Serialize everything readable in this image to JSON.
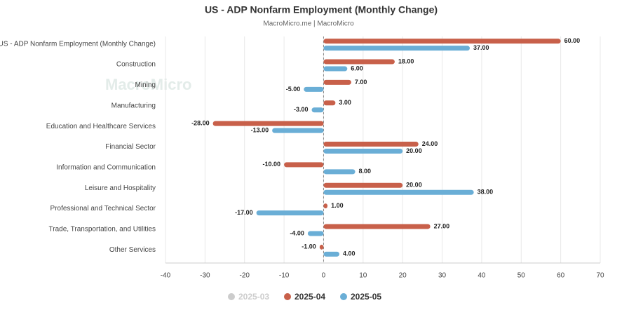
{
  "chart_data": {
    "type": "bar",
    "orientation": "horizontal",
    "title": "US - ADP Nonfarm Employment (Monthly Change)",
    "subtitle": "MacroMicro.me | MacroMicro",
    "watermark": "MacroMicro",
    "categories": [
      "US - ADP Nonfarm Employment (Monthly Change)",
      "Construction",
      "Mining",
      "Manufacturing",
      "Education and Healthcare Services",
      "Financial Sector",
      "Information and Communication",
      "Leisure and Hospitality",
      "Professional and Technical Sector",
      "Trade, Transportation, and Utilities",
      "Other Services"
    ],
    "series": [
      {
        "name": "2025-03",
        "color": "#cccccc",
        "visible": false,
        "values": [
          null,
          null,
          null,
          null,
          null,
          null,
          null,
          null,
          null,
          null,
          null
        ]
      },
      {
        "name": "2025-04",
        "color": "#c8604a",
        "visible": true,
        "values": [
          60,
          18,
          7,
          3,
          -28,
          24,
          -10,
          20,
          1,
          27,
          -1
        ],
        "value_labels": [
          "60.00",
          "18.00",
          "7.00",
          "3.00",
          "-28.00",
          "24.00",
          "-10.00",
          "20.00",
          "1.00",
          "27.00",
          "-1.00"
        ]
      },
      {
        "name": "2025-05",
        "color": "#6aaed6",
        "visible": true,
        "values": [
          37,
          6,
          -5,
          -3,
          -13,
          20,
          8,
          38,
          -17,
          -4,
          4
        ],
        "value_labels": [
          "37.00",
          "6.00",
          "-5.00",
          "-3.00",
          "-13.00",
          "20.00",
          "8.00",
          "38.00",
          "-17.00",
          "-4.00",
          "4.00"
        ]
      }
    ],
    "xlim": [
      -40,
      70
    ],
    "xticks": [
      -40,
      -30,
      -20,
      -10,
      0,
      10,
      20,
      30,
      40,
      50,
      60,
      70
    ],
    "grid": true
  }
}
